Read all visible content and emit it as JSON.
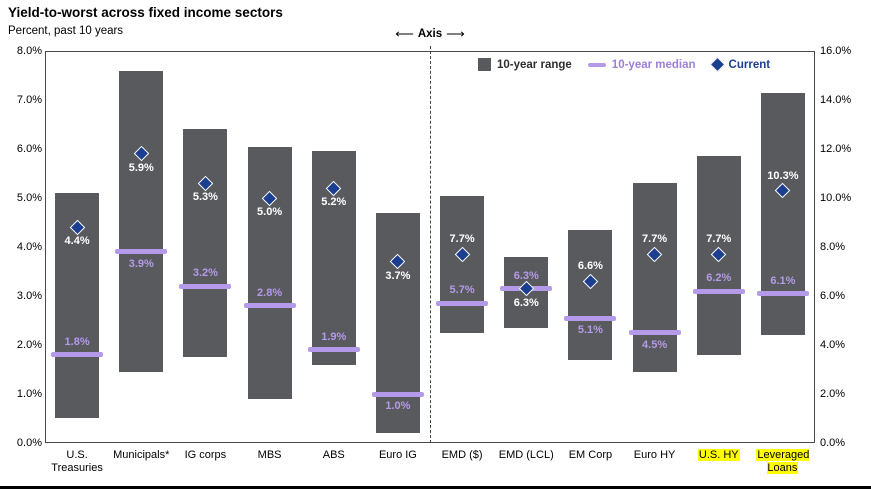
{
  "chart_data": {
    "type": "bar",
    "subtype": "floating-range-with-median-and-current-markers",
    "title": "Yield-to-worst across fixed income sectors",
    "subtitle": "Percent, past 10 years",
    "axis_indicator": "Axis",
    "axis_arrow_left": "⟵",
    "axis_arrow_right": "⟶",
    "legend": {
      "range": "10-year range",
      "median": "10-year median",
      "current": "Current"
    },
    "colors": {
      "bar": "#595a5e",
      "median": "#b49ae8",
      "median_dark": "#9d7fd8",
      "current": "#1c3e91",
      "highlight": "#ffff00"
    },
    "left_axis": {
      "min": 0,
      "max": 8,
      "ticks": [
        "8.0%",
        "7.0%",
        "6.0%",
        "5.0%",
        "4.0%",
        "3.0%",
        "2.0%",
        "1.0%",
        "0.0%"
      ]
    },
    "right_axis": {
      "min": 0,
      "max": 16,
      "ticks": [
        "16.0%",
        "14.0%",
        "12.0%",
        "10.0%",
        "8.0%",
        "6.0%",
        "4.0%",
        "2.0%",
        "0.0%"
      ]
    },
    "categories": [
      {
        "label": "U.S. Treasuries",
        "axis": "left",
        "range": [
          0.5,
          5.1
        ],
        "median": 1.8,
        "current": 4.4,
        "median_label": "1.8%",
        "current_label": "4.4%",
        "median_label_pos": "above",
        "current_label_pos": "below",
        "highlight": false
      },
      {
        "label": "Municipals*",
        "axis": "left",
        "range": [
          1.45,
          7.6
        ],
        "median": 3.9,
        "current": 5.9,
        "median_label": "3.9%",
        "current_label": "5.9%",
        "median_label_pos": "below",
        "current_label_pos": "below",
        "highlight": false
      },
      {
        "label": "IG corps",
        "axis": "left",
        "range": [
          1.75,
          6.4
        ],
        "median": 3.2,
        "current": 5.3,
        "median_label": "3.2%",
        "current_label": "5.3%",
        "median_label_pos": "above",
        "current_label_pos": "below",
        "highlight": false
      },
      {
        "label": "MBS",
        "axis": "left",
        "range": [
          0.9,
          6.05
        ],
        "median": 2.8,
        "current": 5.0,
        "median_label": "2.8%",
        "current_label": "5.0%",
        "median_label_pos": "above",
        "current_label_pos": "below",
        "highlight": false
      },
      {
        "label": "ABS",
        "axis": "left",
        "range": [
          1.6,
          5.95
        ],
        "median": 1.9,
        "current": 5.2,
        "median_label": "1.9%",
        "current_label": "5.2%",
        "median_label_pos": "above",
        "current_label_pos": "below",
        "highlight": false
      },
      {
        "label": "Euro IG",
        "axis": "left",
        "range": [
          0.2,
          4.7
        ],
        "median": 1.0,
        "current": 3.7,
        "median_label": "1.0%",
        "current_label": "3.7%",
        "median_label_pos": "below",
        "current_label_pos": "below",
        "highlight": false
      },
      {
        "label": "EMD ($)",
        "axis": "right",
        "range": [
          4.5,
          10.1
        ],
        "median": 5.7,
        "current": 7.7,
        "median_label": "5.7%",
        "current_label": "7.7%",
        "median_label_pos": "above",
        "current_label_pos": "above",
        "highlight": false
      },
      {
        "label": "EMD (LCL)",
        "axis": "right",
        "range": [
          4.7,
          7.6
        ],
        "median": 6.3,
        "current": 6.3,
        "median_label": "6.3%",
        "current_label": "6.3%",
        "median_label_pos": "above",
        "current_label_pos": "below",
        "highlight": false
      },
      {
        "label": "EM Corp",
        "axis": "right",
        "range": [
          3.4,
          8.7
        ],
        "median": 5.1,
        "current": 6.6,
        "median_label": "5.1%",
        "current_label": "6.6%",
        "median_label_pos": "below",
        "current_label_pos": "above",
        "highlight": false
      },
      {
        "label": "Euro HY",
        "axis": "right",
        "range": [
          2.9,
          10.6
        ],
        "median": 4.5,
        "current": 7.7,
        "median_label": "4.5%",
        "current_label": "7.7%",
        "median_label_pos": "below",
        "current_label_pos": "above",
        "highlight": false
      },
      {
        "label": "U.S. HY",
        "axis": "right",
        "range": [
          3.6,
          11.7
        ],
        "median": 6.2,
        "current": 7.7,
        "median_label": "6.2%",
        "current_label": "7.7%",
        "median_label_pos": "above",
        "current_label_pos": "above",
        "highlight": true
      },
      {
        "label": "Leveraged Loans",
        "axis": "right",
        "range": [
          4.4,
          14.3
        ],
        "median": 6.1,
        "current": 10.3,
        "median_label": "6.1%",
        "current_label": "10.3%",
        "median_label_pos": "above",
        "current_label_pos": "above",
        "highlight": true
      }
    ]
  }
}
